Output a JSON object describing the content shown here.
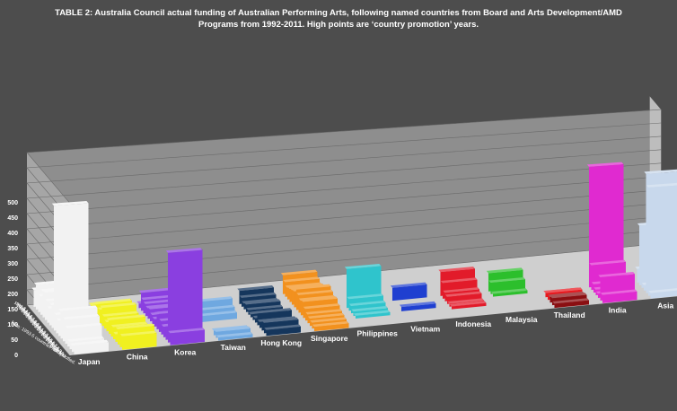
{
  "chart_data": {
    "type": "bar3d",
    "title_lines": [
      "TABLE 2: Australia Council actual funding of Australian Performing Arts, following named countries from Board and Arts Development/AMD",
      "Programs from 1992-2011.   High points are ‘country promotion’ years."
    ],
    "ylim": [
      0,
      500
    ],
    "yticks": [
      0,
      50,
      100,
      150,
      200,
      250,
      300,
      350,
      400,
      450,
      500
    ],
    "years": [
      "1992-3",
      "1993-4",
      "1994-5",
      "1995-6",
      "1996-7",
      "1997-8",
      "1998-9",
      "1999-0",
      "2000-1",
      "2001-2",
      "2002-3",
      "2003-4",
      "2004-5",
      "2005-6",
      "2006-7",
      "2007-8",
      "2008-9",
      "2009-10",
      "2010-11"
    ],
    "note": "Note: 1993-5 countries not specified.",
    "series": [
      {
        "name": "Japan",
        "color": "#f2f2f2",
        "values": [
          55,
          80,
          90,
          60,
          85,
          90,
          70,
          55,
          75,
          410,
          60,
          50,
          90,
          100,
          80,
          60,
          25,
          20,
          30
        ]
      },
      {
        "name": "China",
        "color": "#f0f020",
        "values": [
          0,
          0,
          0,
          0,
          25,
          15,
          45,
          55,
          45,
          60,
          40,
          30,
          45,
          55,
          40,
          25,
          50,
          60,
          45
        ]
      },
      {
        "name": "Korea",
        "color": "#8a3fe0",
        "values": [
          0,
          0,
          0,
          0,
          15,
          60,
          45,
          40,
          35,
          40,
          30,
          25,
          50,
          60,
          45,
          35,
          45,
          300,
          40
        ]
      },
      {
        "name": "Taiwan",
        "color": "#6fa8e0",
        "values": [
          0,
          0,
          0,
          0,
          0,
          0,
          0,
          0,
          0,
          50,
          30,
          20,
          0,
          0,
          0,
          0,
          15,
          20,
          10
        ]
      },
      {
        "name": "Hong Kong",
        "color": "#15365c",
        "values": [
          0,
          0,
          0,
          0,
          0,
          0,
          45,
          30,
          20,
          25,
          15,
          10,
          20,
          15,
          40,
          20,
          30,
          35,
          20
        ]
      },
      {
        "name": "Singapore",
        "color": "#f2911e",
        "values": [
          0,
          0,
          0,
          0,
          65,
          50,
          40,
          45,
          50,
          55,
          70,
          60,
          50,
          55,
          40,
          30,
          25,
          20,
          15
        ]
      },
      {
        "name": "Philippines",
        "color": "#2fc4cc",
        "values": [
          0,
          0,
          0,
          0,
          0,
          0,
          0,
          0,
          0,
          0,
          0,
          135,
          40,
          25,
          15,
          10,
          0,
          0,
          0
        ]
      },
      {
        "name": "Vietnam",
        "color": "#1f3fd0",
        "values": [
          0,
          0,
          0,
          0,
          0,
          0,
          0,
          0,
          0,
          0,
          45,
          0,
          0,
          0,
          15,
          0,
          0,
          0,
          0
        ]
      },
      {
        "name": "Indonesia",
        "color": "#e21b2a",
        "values": [
          0,
          0,
          0,
          0,
          0,
          0,
          0,
          0,
          0,
          0,
          85,
          55,
          30,
          25,
          10,
          10,
          0,
          0,
          0
        ]
      },
      {
        "name": "Malaysia",
        "color": "#2cbf2c",
        "values": [
          0,
          0,
          0,
          0,
          0,
          0,
          0,
          0,
          0,
          0,
          65,
          40,
          10,
          0,
          0,
          0,
          0,
          0,
          0
        ]
      },
      {
        "name": "Thailand",
        "color": "#e8191f",
        "values": [
          0,
          0,
          0,
          0,
          0,
          0,
          0,
          0,
          0,
          0,
          0,
          0,
          0,
          0,
          15,
          25,
          0,
          0,
          0
        ]
      },
      {
        "name": "India",
        "color": "#e02ad0",
        "values": [
          0,
          0,
          0,
          0,
          0,
          0,
          0,
          0,
          0,
          0,
          0,
          0,
          440,
          90,
          30,
          20,
          15,
          85,
          30
        ]
      },
      {
        "name": "Asia",
        "color": "#c8d8ec",
        "values": [
          0,
          0,
          0,
          0,
          0,
          0,
          0,
          0,
          0,
          0,
          0,
          0,
          50,
          220,
          230,
          20,
          440,
          400,
          20
        ]
      }
    ],
    "extra_series": [
      {
        "name": "Thailand-late",
        "color": "#8a0f12",
        "values": [
          0,
          0,
          0,
          0,
          0,
          0,
          0,
          0,
          0,
          0,
          0,
          0,
          0,
          0,
          0,
          0,
          20,
          25,
          15
        ]
      }
    ]
  }
}
